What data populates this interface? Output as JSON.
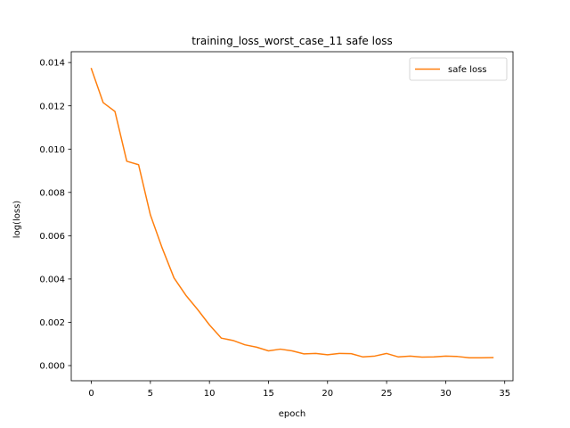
{
  "chart_data": {
    "type": "line",
    "title": "training_loss_worst_case_11 safe loss",
    "xlabel": "epoch",
    "ylabel": "log(loss)",
    "xlim": [
      -1.7,
      35.7
    ],
    "ylim": [
      -0.0007,
      0.0145
    ],
    "xticks": [
      0,
      5,
      10,
      15,
      20,
      25,
      30,
      35
    ],
    "yticks": [
      0.0,
      0.002,
      0.004,
      0.006,
      0.008,
      0.01,
      0.012,
      0.014
    ],
    "ytick_labels": [
      "0.000",
      "0.002",
      "0.004",
      "0.006",
      "0.008",
      "0.010",
      "0.012",
      "0.014"
    ],
    "grid": false,
    "legend_position": "top-right",
    "series": [
      {
        "name": "safe loss",
        "color": "#ff7f0e",
        "x": [
          0,
          1,
          2,
          3,
          4,
          5,
          6,
          7,
          8,
          9,
          10,
          11,
          12,
          13,
          14,
          15,
          16,
          17,
          18,
          19,
          20,
          21,
          22,
          23,
          24,
          25,
          26,
          27,
          28,
          29,
          30,
          31,
          32,
          33,
          34
        ],
        "y": [
          0.01372,
          0.01215,
          0.01174,
          0.00944,
          0.00928,
          0.00696,
          0.00543,
          0.00405,
          0.00325,
          0.00259,
          0.00188,
          0.00127,
          0.00116,
          0.00096,
          0.00085,
          0.00068,
          0.00076,
          0.00068,
          0.00054,
          0.00056,
          0.0005,
          0.00056,
          0.00055,
          0.0004,
          0.00044,
          0.00056,
          0.0004,
          0.00044,
          0.00039,
          0.0004,
          0.00044,
          0.00042,
          0.00036,
          0.00036,
          0.00037
        ]
      }
    ]
  }
}
